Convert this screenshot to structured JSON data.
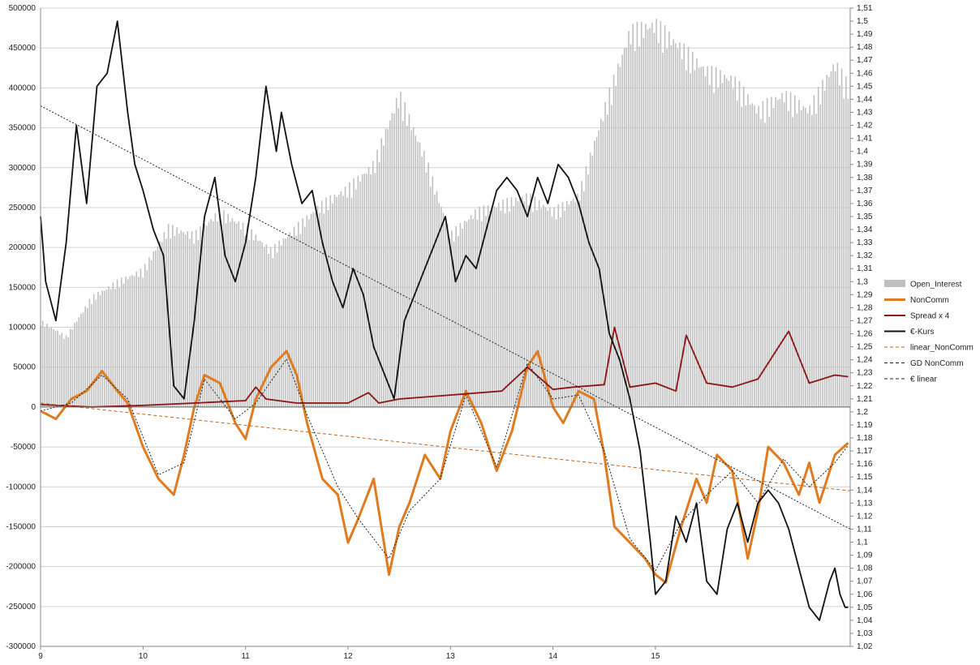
{
  "chart_data": {
    "type": "bar+line",
    "title": "",
    "grid": true,
    "legend_position": "right",
    "x": {
      "labels": [
        "9",
        "10",
        "11",
        "12",
        "13",
        "14",
        "15"
      ],
      "range_years": [
        2009,
        2016.9
      ]
    },
    "y_left": {
      "range": [
        -300000,
        500000
      ],
      "ticks": [
        -300000,
        -250000,
        -200000,
        -150000,
        -100000,
        -50000,
        0,
        50000,
        100000,
        150000,
        200000,
        250000,
        300000,
        350000,
        400000,
        450000,
        500000
      ]
    },
    "y_right": {
      "range": [
        1.02,
        1.51
      ],
      "ticks": [
        "1,02",
        "1,03",
        "1,04",
        "1,05",
        "1,06",
        "1,07",
        "1,08",
        "1,09",
        "1,1",
        "1,11",
        "1,12",
        "1,13",
        "1,14",
        "1,15",
        "1,16",
        "1,17",
        "1,18",
        "1,19",
        "1,2",
        "1,21",
        "1,22",
        "1,23",
        "1,24",
        "1,25",
        "1,26",
        "1,27",
        "1,28",
        "1,29",
        "1,3",
        "1,31",
        "1,32",
        "1,33",
        "1,34",
        "1,35",
        "1,36",
        "1,37",
        "1,38",
        "1,39",
        "1,4",
        "1,41",
        "1,42",
        "1,43",
        "1,44",
        "1,45",
        "1,46",
        "1,47",
        "1,48",
        "1,49",
        "1,5",
        "1,51"
      ]
    },
    "series": [
      {
        "name": "Open_Interest",
        "kind": "bar",
        "axis": "left",
        "color": "#bfbfbf",
        "x": [
          2009.0,
          2009.25,
          2009.5,
          2009.75,
          2010.0,
          2010.25,
          2010.5,
          2010.75,
          2011.0,
          2011.25,
          2011.5,
          2011.75,
          2012.0,
          2012.25,
          2012.5,
          2012.75,
          2013.0,
          2013.25,
          2013.5,
          2013.75,
          2014.0,
          2014.25,
          2014.5,
          2014.75,
          2015.0,
          2015.25,
          2015.5,
          2015.75,
          2016.0,
          2016.25,
          2016.5,
          2016.75,
          2016.88
        ],
        "values": [
          110000,
          90000,
          140000,
          160000,
          175000,
          230000,
          220000,
          250000,
          230000,
          200000,
          230000,
          260000,
          280000,
          310000,
          400000,
          320000,
          220000,
          250000,
          260000,
          270000,
          250000,
          270000,
          380000,
          480000,
          490000,
          460000,
          430000,
          420000,
          380000,
          400000,
          380000,
          440000,
          410000
        ]
      },
      {
        "name": "NonComm",
        "kind": "line",
        "axis": "left",
        "color": "#e07b1f",
        "x": [
          2009.0,
          2009.15,
          2009.3,
          2009.45,
          2009.6,
          2009.75,
          2009.85,
          2010.0,
          2010.15,
          2010.3,
          2010.4,
          2010.5,
          2010.6,
          2010.75,
          2010.9,
          2011.0,
          2011.1,
          2011.25,
          2011.4,
          2011.5,
          2011.6,
          2011.75,
          2011.9,
          2012.0,
          2012.1,
          2012.25,
          2012.4,
          2012.5,
          2012.6,
          2012.75,
          2012.9,
          2013.0,
          2013.15,
          2013.3,
          2013.45,
          2013.6,
          2013.75,
          2013.85,
          2014.0,
          2014.1,
          2014.25,
          2014.4,
          2014.5,
          2014.6,
          2014.75,
          2014.9,
          2015.0,
          2015.1,
          2015.25,
          2015.4,
          2015.5,
          2015.6,
          2015.75,
          2015.9,
          2016.0,
          2016.1,
          2016.25,
          2016.4,
          2016.5,
          2016.6,
          2016.75,
          2016.88
        ],
        "values": [
          -5000,
          -15000,
          10000,
          20000,
          45000,
          20000,
          5000,
          -50000,
          -90000,
          -110000,
          -60000,
          0,
          40000,
          30000,
          -20000,
          -40000,
          10000,
          50000,
          70000,
          40000,
          -20000,
          -90000,
          -110000,
          -170000,
          -140000,
          -90000,
          -210000,
          -150000,
          -120000,
          -60000,
          -90000,
          -30000,
          20000,
          -20000,
          -80000,
          -30000,
          50000,
          70000,
          0,
          -20000,
          20000,
          10000,
          -60000,
          -150000,
          -170000,
          -190000,
          -210000,
          -220000,
          -150000,
          -90000,
          -120000,
          -60000,
          -80000,
          -190000,
          -130000,
          -50000,
          -70000,
          -110000,
          -70000,
          -120000,
          -60000,
          -45000
        ]
      },
      {
        "name": "Spread x 4",
        "kind": "line",
        "axis": "left",
        "color": "#8b1414",
        "x": [
          2009.0,
          2009.5,
          2010.0,
          2010.5,
          2011.0,
          2011.1,
          2011.2,
          2011.5,
          2012.0,
          2012.2,
          2012.3,
          2012.5,
          2013.0,
          2013.5,
          2013.75,
          2014.0,
          2014.2,
          2014.5,
          2014.6,
          2014.75,
          2015.0,
          2015.2,
          2015.3,
          2015.5,
          2015.75,
          2016.0,
          2016.3,
          2016.5,
          2016.75,
          2016.88
        ],
        "values": [
          3000,
          0,
          2000,
          5000,
          8000,
          25000,
          10000,
          5000,
          5000,
          18000,
          5000,
          10000,
          15000,
          20000,
          50000,
          22000,
          25000,
          28000,
          100000,
          25000,
          30000,
          20000,
          90000,
          30000,
          25000,
          35000,
          95000,
          30000,
          40000,
          38000
        ]
      },
      {
        "name": "€-Kurs",
        "kind": "line",
        "axis": "right",
        "color": "#111111",
        "x": [
          2009.0,
          2009.05,
          2009.15,
          2009.25,
          2009.35,
          2009.45,
          2009.55,
          2009.65,
          2009.75,
          2009.85,
          2009.92,
          2010.0,
          2010.1,
          2010.2,
          2010.3,
          2010.4,
          2010.5,
          2010.6,
          2010.7,
          2010.8,
          2010.9,
          2011.0,
          2011.1,
          2011.2,
          2011.3,
          2011.35,
          2011.45,
          2011.55,
          2011.65,
          2011.75,
          2011.85,
          2011.95,
          2012.05,
          2012.15,
          2012.25,
          2012.35,
          2012.45,
          2012.55,
          2012.65,
          2012.75,
          2012.85,
          2012.95,
          2013.05,
          2013.15,
          2013.25,
          2013.35,
          2013.45,
          2013.55,
          2013.65,
          2013.75,
          2013.85,
          2013.95,
          2014.05,
          2014.15,
          2014.25,
          2014.35,
          2014.45,
          2014.55,
          2014.65,
          2014.75,
          2014.85,
          2014.95,
          2015.0,
          2015.1,
          2015.2,
          2015.3,
          2015.4,
          2015.5,
          2015.6,
          2015.7,
          2015.8,
          2015.9,
          2016.0,
          2016.1,
          2016.2,
          2016.3,
          2016.4,
          2016.5,
          2016.6,
          2016.7,
          2016.75,
          2016.8,
          2016.85,
          2016.88
        ],
        "values": [
          1.35,
          1.3,
          1.27,
          1.33,
          1.42,
          1.36,
          1.45,
          1.46,
          1.5,
          1.43,
          1.39,
          1.37,
          1.34,
          1.32,
          1.22,
          1.21,
          1.27,
          1.35,
          1.38,
          1.32,
          1.3,
          1.33,
          1.38,
          1.45,
          1.4,
          1.43,
          1.39,
          1.36,
          1.37,
          1.33,
          1.3,
          1.28,
          1.31,
          1.29,
          1.25,
          1.23,
          1.21,
          1.27,
          1.29,
          1.31,
          1.33,
          1.35,
          1.3,
          1.32,
          1.31,
          1.34,
          1.37,
          1.38,
          1.37,
          1.35,
          1.38,
          1.36,
          1.39,
          1.38,
          1.36,
          1.33,
          1.31,
          1.26,
          1.24,
          1.21,
          1.17,
          1.1,
          1.06,
          1.07,
          1.12,
          1.1,
          1.13,
          1.07,
          1.06,
          1.11,
          1.13,
          1.1,
          1.13,
          1.14,
          1.13,
          1.11,
          1.08,
          1.05,
          1.04,
          1.07,
          1.08,
          1.06,
          1.05,
          1.05
        ]
      },
      {
        "name": "linear_NonComm",
        "kind": "trend",
        "axis": "left",
        "color": "#c0651a",
        "dash": "4,3",
        "x": [
          2009.0,
          2016.9
        ],
        "values": [
          5000,
          -105000
        ]
      },
      {
        "name": "GD NonComm",
        "kind": "line",
        "axis": "left",
        "color": "#222222",
        "dash": "2,2",
        "x": [
          2009.0,
          2009.3,
          2009.6,
          2009.85,
          2010.15,
          2010.4,
          2010.6,
          2010.9,
          2011.1,
          2011.4,
          2011.6,
          2011.9,
          2012.1,
          2012.4,
          2012.6,
          2012.9,
          2013.15,
          2013.45,
          2013.75,
          2014.0,
          2014.25,
          2014.5,
          2014.75,
          2015.0,
          2015.25,
          2015.5,
          2015.75,
          2016.0,
          2016.25,
          2016.5,
          2016.75,
          2016.88
        ],
        "values": [
          -5000,
          5000,
          40000,
          10000,
          -85000,
          -70000,
          35000,
          -15000,
          5000,
          60000,
          -10000,
          -100000,
          -140000,
          -190000,
          -130000,
          -90000,
          15000,
          -75000,
          55000,
          10000,
          15000,
          -55000,
          -165000,
          -205000,
          -145000,
          -110000,
          -80000,
          -120000,
          -65000,
          -100000,
          -70000,
          -48000
        ]
      },
      {
        "name": "€ linear",
        "kind": "trend",
        "axis": "right",
        "color": "#222222",
        "dash": "2,2",
        "x": [
          2009.0,
          2016.9
        ],
        "values": [
          1.435,
          1.11
        ]
      }
    ]
  },
  "legend": [
    {
      "label": "Open_Interest",
      "swatch": "bar",
      "color": "#bfbfbf"
    },
    {
      "label": "NonComm",
      "swatch": "line",
      "color": "#e07b1f",
      "width": 3
    },
    {
      "label": "Spread x 4",
      "swatch": "line",
      "color": "#8b1414",
      "width": 2
    },
    {
      "label": "€-Kurs",
      "swatch": "line",
      "color": "#111111",
      "width": 2
    },
    {
      "label": "linear_NonComm",
      "swatch": "dash",
      "color": "#c0651a",
      "width": 1
    },
    {
      "label": "GD NonComm",
      "swatch": "dash",
      "color": "#222222",
      "width": 1
    },
    {
      "label": "€ linear",
      "swatch": "dash",
      "color": "#222222",
      "width": 1
    }
  ]
}
